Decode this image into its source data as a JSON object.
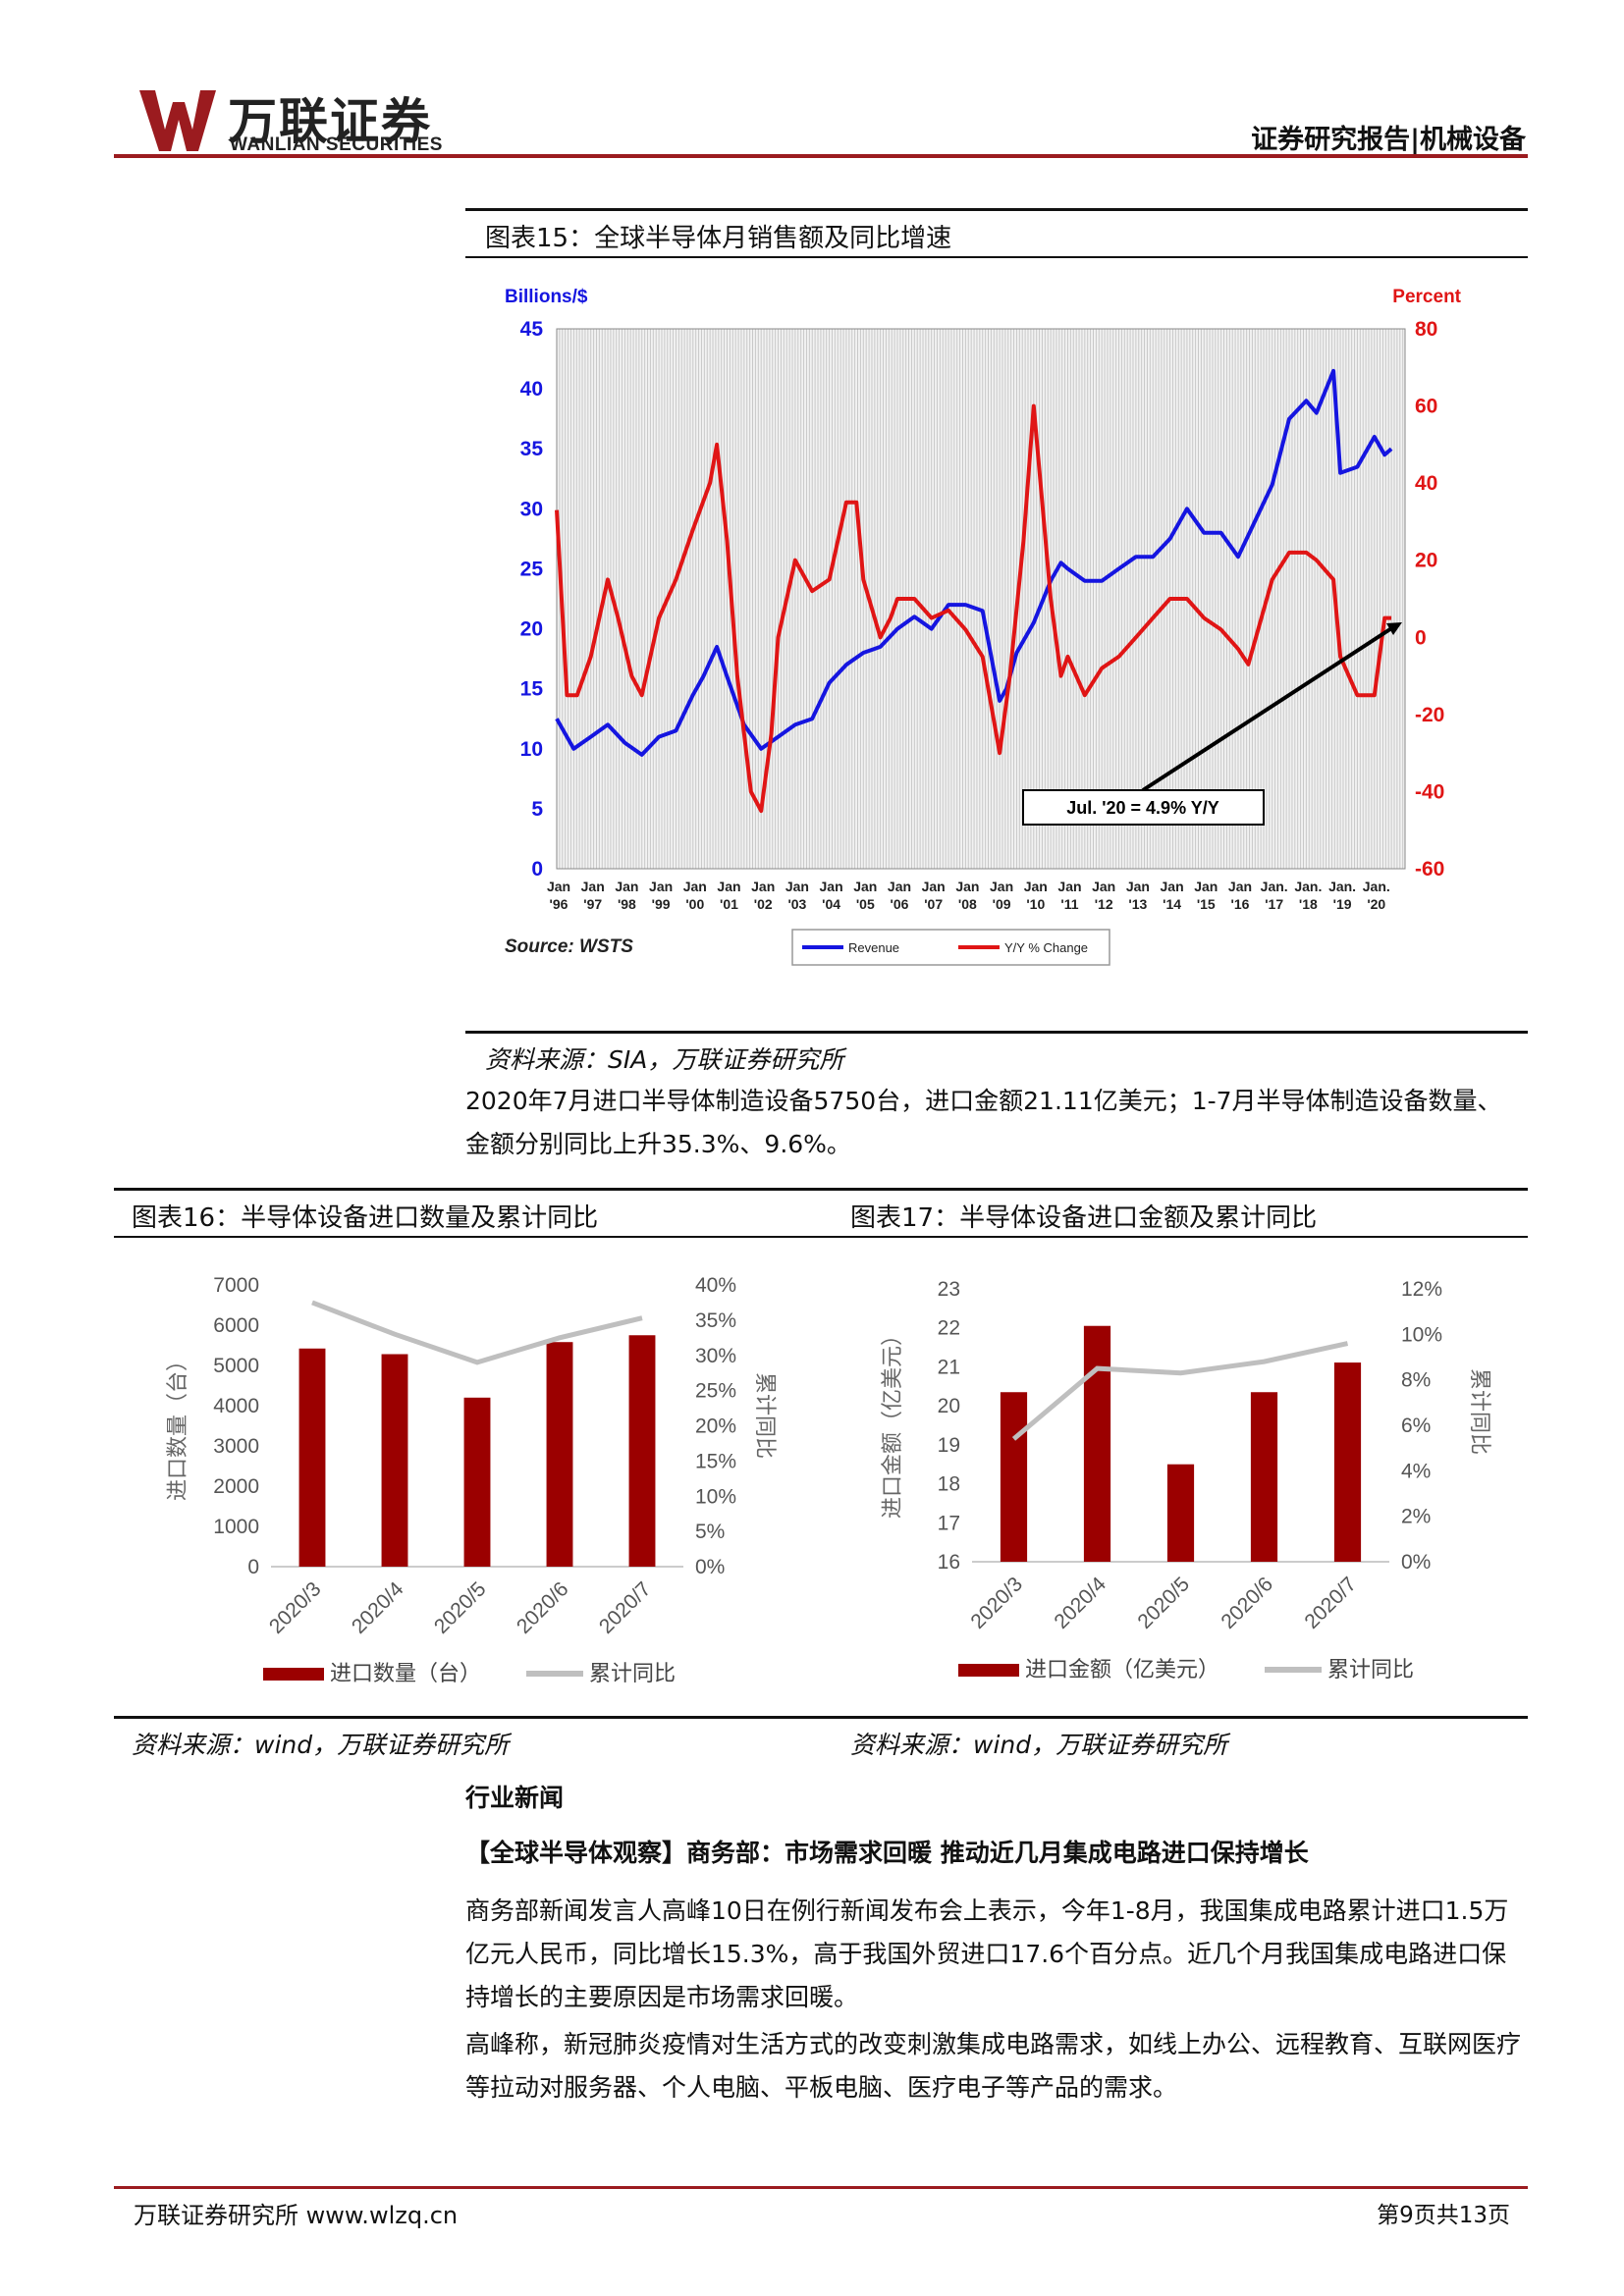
{
  "header": {
    "logo_cn": "万联证券",
    "logo_en": "WANLIAN SECURITIES",
    "report_type": "证券研究报告|机械设备",
    "brand_color": "#9b1b1f"
  },
  "fig15": {
    "title": "图表15：全球半导体月销售额及同比增速",
    "source": "资料来源：SIA，万联证券研究所",
    "chart_data": {
      "type": "line",
      "ylabel_left": "Billions/$",
      "ylabel_right": "Percent",
      "ylim_left": [
        0,
        45
      ],
      "ylim_right": [
        -60,
        80
      ],
      "yticks_left": [
        "45",
        "40",
        "35",
        "30",
        "25",
        "20",
        "15",
        "10",
        "5",
        "0"
      ],
      "yticks_right": [
        "80",
        "60",
        "40",
        "20",
        "0",
        "-20",
        "-40",
        "-60"
      ],
      "xticks": [
        [
          "Jan",
          "'96"
        ],
        [
          "Jan",
          "'97"
        ],
        [
          "Jan",
          "'98"
        ],
        [
          "Jan",
          "'99"
        ],
        [
          "Jan",
          "'00"
        ],
        [
          "Jan",
          "'01"
        ],
        [
          "Jan",
          "'02"
        ],
        [
          "Jan",
          "'03"
        ],
        [
          "Jan",
          "'04"
        ],
        [
          "Jan",
          "'05"
        ],
        [
          "Jan",
          "'06"
        ],
        [
          "Jan",
          "'07"
        ],
        [
          "Jan",
          "'08"
        ],
        [
          "Jan",
          "'09"
        ],
        [
          "Jan",
          "'10"
        ],
        [
          "Jan",
          "'11"
        ],
        [
          "Jan",
          "'12"
        ],
        [
          "Jan",
          "'13"
        ],
        [
          "Jan",
          "'14"
        ],
        [
          "Jan",
          "'15"
        ],
        [
          "Jan",
          "'16"
        ],
        [
          "Jan.",
          "'17"
        ],
        [
          "Jan.",
          "'18"
        ],
        [
          "Jan.",
          "'19"
        ],
        [
          "Jan.",
          "'20"
        ]
      ],
      "source_label": "Source: WSTS",
      "annotation": "Jul. '20 = 4.9% Y/Y",
      "grid": true,
      "series": [
        {
          "name": "Revenue",
          "axis": "left",
          "color": "#1515e0",
          "x": [
            1996,
            1996.5,
            1997,
            1997.5,
            1998,
            1998.5,
            1999,
            1999.5,
            2000,
            2000.3,
            2000.7,
            2001,
            2001.5,
            2002,
            2002.5,
            2003,
            2003.5,
            2004,
            2004.5,
            2005,
            2005.5,
            2006,
            2006.5,
            2007,
            2007.5,
            2008,
            2008.5,
            2009,
            2009.2,
            2009.5,
            2010,
            2010.5,
            2010.8,
            2011,
            2011.5,
            2012,
            2012.5,
            2013,
            2013.5,
            2014,
            2014.5,
            2015,
            2015.5,
            2016,
            2016.5,
            2017,
            2017.5,
            2018,
            2018.3,
            2018.8,
            2019,
            2019.5,
            2020,
            2020.3,
            2020.5
          ],
          "values": [
            12.5,
            10,
            11,
            12,
            10.5,
            9.5,
            11,
            11.5,
            14.5,
            16,
            18.5,
            16,
            12,
            10,
            11,
            12,
            12.5,
            15.5,
            17,
            18,
            18.5,
            20,
            21,
            20,
            22,
            22,
            21.5,
            14,
            15,
            18,
            20.5,
            24,
            25.5,
            25,
            24,
            24,
            25,
            26,
            26,
            27.5,
            30,
            28,
            28,
            26,
            29,
            32,
            37.5,
            39,
            38,
            41.5,
            33,
            33.5,
            36,
            34.5,
            35
          ]
        },
        {
          "name": "Y/Y % Change",
          "axis": "right",
          "color": "#e01515",
          "x": [
            1996,
            1996.3,
            1996.6,
            1997,
            1997.5,
            1997.8,
            1998.2,
            1998.5,
            1999,
            1999.5,
            2000,
            2000.5,
            2000.7,
            2001,
            2001.3,
            2001.7,
            2002,
            2002.3,
            2002.5,
            2003,
            2003.5,
            2004,
            2004.5,
            2004.8,
            2005,
            2005.5,
            2005.8,
            2006,
            2006.5,
            2007,
            2007.5,
            2008,
            2008.5,
            2009,
            2009.3,
            2009.7,
            2010,
            2010.3,
            2010.5,
            2010.8,
            2011,
            2011.5,
            2012,
            2012.5,
            2013,
            2013.5,
            2014,
            2014.5,
            2015,
            2015.5,
            2016,
            2016.3,
            2017,
            2017.5,
            2018,
            2018.3,
            2018.8,
            2019,
            2019.5,
            2020,
            2020.3,
            2020.5
          ],
          "values": [
            33,
            -15,
            -15,
            -5,
            15,
            5,
            -10,
            -15,
            5,
            15,
            28,
            40,
            50,
            25,
            -10,
            -40,
            -45,
            -25,
            0,
            20,
            12,
            15,
            35,
            35,
            15,
            0,
            5,
            10,
            10,
            5,
            7,
            2,
            -5,
            -30,
            -10,
            25,
            60,
            30,
            10,
            -10,
            -5,
            -15,
            -8,
            -5,
            0,
            5,
            10,
            10,
            5,
            2,
            -3,
            -7,
            15,
            22,
            22,
            20,
            15,
            -5,
            -15,
            -15,
            5,
            5
          ]
        }
      ],
      "legend": [
        "Revenue",
        "Y/Y % Change"
      ],
      "legend_placement": "bottom"
    }
  },
  "para1": "2020年7月进口半导体制造设备5750台，进口金额21.11亿美元；1-7月半导体制造设备数量、金额分别同比上升35.3%、9.6%。",
  "fig16": {
    "title": "图表16：半导体设备进口数量及累计同比",
    "source": "资料来源：wind，万联证券研究所",
    "chart_data": {
      "type": "bar",
      "categories": [
        "2020/3",
        "2020/4",
        "2020/5",
        "2020/6",
        "2020/7"
      ],
      "ylabel": "进口数量（台）",
      "ylabel_right": "累计同比",
      "ylim": [
        0,
        7000
      ],
      "ylim_right": [
        0,
        40
      ],
      "yticks": [
        "7000",
        "6000",
        "5000",
        "4000",
        "3000",
        "2000",
        "1000",
        "0"
      ],
      "yticks_right": [
        "40%",
        "35%",
        "30%",
        "25%",
        "20%",
        "15%",
        "10%",
        "5%",
        "0%"
      ],
      "series": [
        {
          "name": "进口数量（台）",
          "color": "#9b0000",
          "values": [
            5420,
            5280,
            4200,
            5580,
            5750
          ]
        },
        {
          "name": "累计同比",
          "color": "#bfbfbf",
          "values": [
            37.5,
            33,
            29,
            32.5,
            35.3
          ]
        }
      ]
    }
  },
  "fig17": {
    "title": "图表17：半导体设备进口金额及累计同比",
    "source": "资料来源：wind，万联证券研究所",
    "chart_data": {
      "type": "bar",
      "categories": [
        "2020/3",
        "2020/4",
        "2020/5",
        "2020/6",
        "2020/7"
      ],
      "ylabel": "进口金额（亿美元）",
      "ylabel_right": "累计同比",
      "ylim": [
        16,
        23
      ],
      "ylim_right": [
        0,
        12
      ],
      "yticks": [
        "23",
        "22",
        "21",
        "20",
        "19",
        "18",
        "17",
        "16"
      ],
      "yticks_right": [
        "12%",
        "10%",
        "8%",
        "6%",
        "4%",
        "2%",
        "0%"
      ],
      "series": [
        {
          "name": "进口金额（亿美元）",
          "color": "#9b0000",
          "values": [
            20.35,
            22.05,
            18.5,
            20.35,
            21.11
          ]
        },
        {
          "name": "累计同比",
          "color": "#bfbfbf",
          "values": [
            5.4,
            8.5,
            8.3,
            8.8,
            9.6
          ]
        }
      ]
    }
  },
  "news": {
    "section_title": "行业新闻",
    "headline": "【全球半导体观察】商务部：市场需求回暖 推动近几月集成电路进口保持增长",
    "p1": "商务部新闻发言人高峰10日在例行新闻发布会上表示，今年1-8月，我国集成电路累计进口1.5万亿元人民币，同比增长15.3%，高于我国外贸进口17.6个百分点。近几个月我国集成电路进口保持增长的主要原因是市场需求回暖。",
    "p2": "高峰称，新冠肺炎疫情对生活方式的改变刺激集成电路需求，如线上办公、远程教育、互联网医疗等拉动对服务器、个人电脑、平板电脑、医疗电子等产品的需求。"
  },
  "footer": {
    "left": "万联证券研究所 www.wlzq.cn",
    "right": "第9页共13页"
  }
}
